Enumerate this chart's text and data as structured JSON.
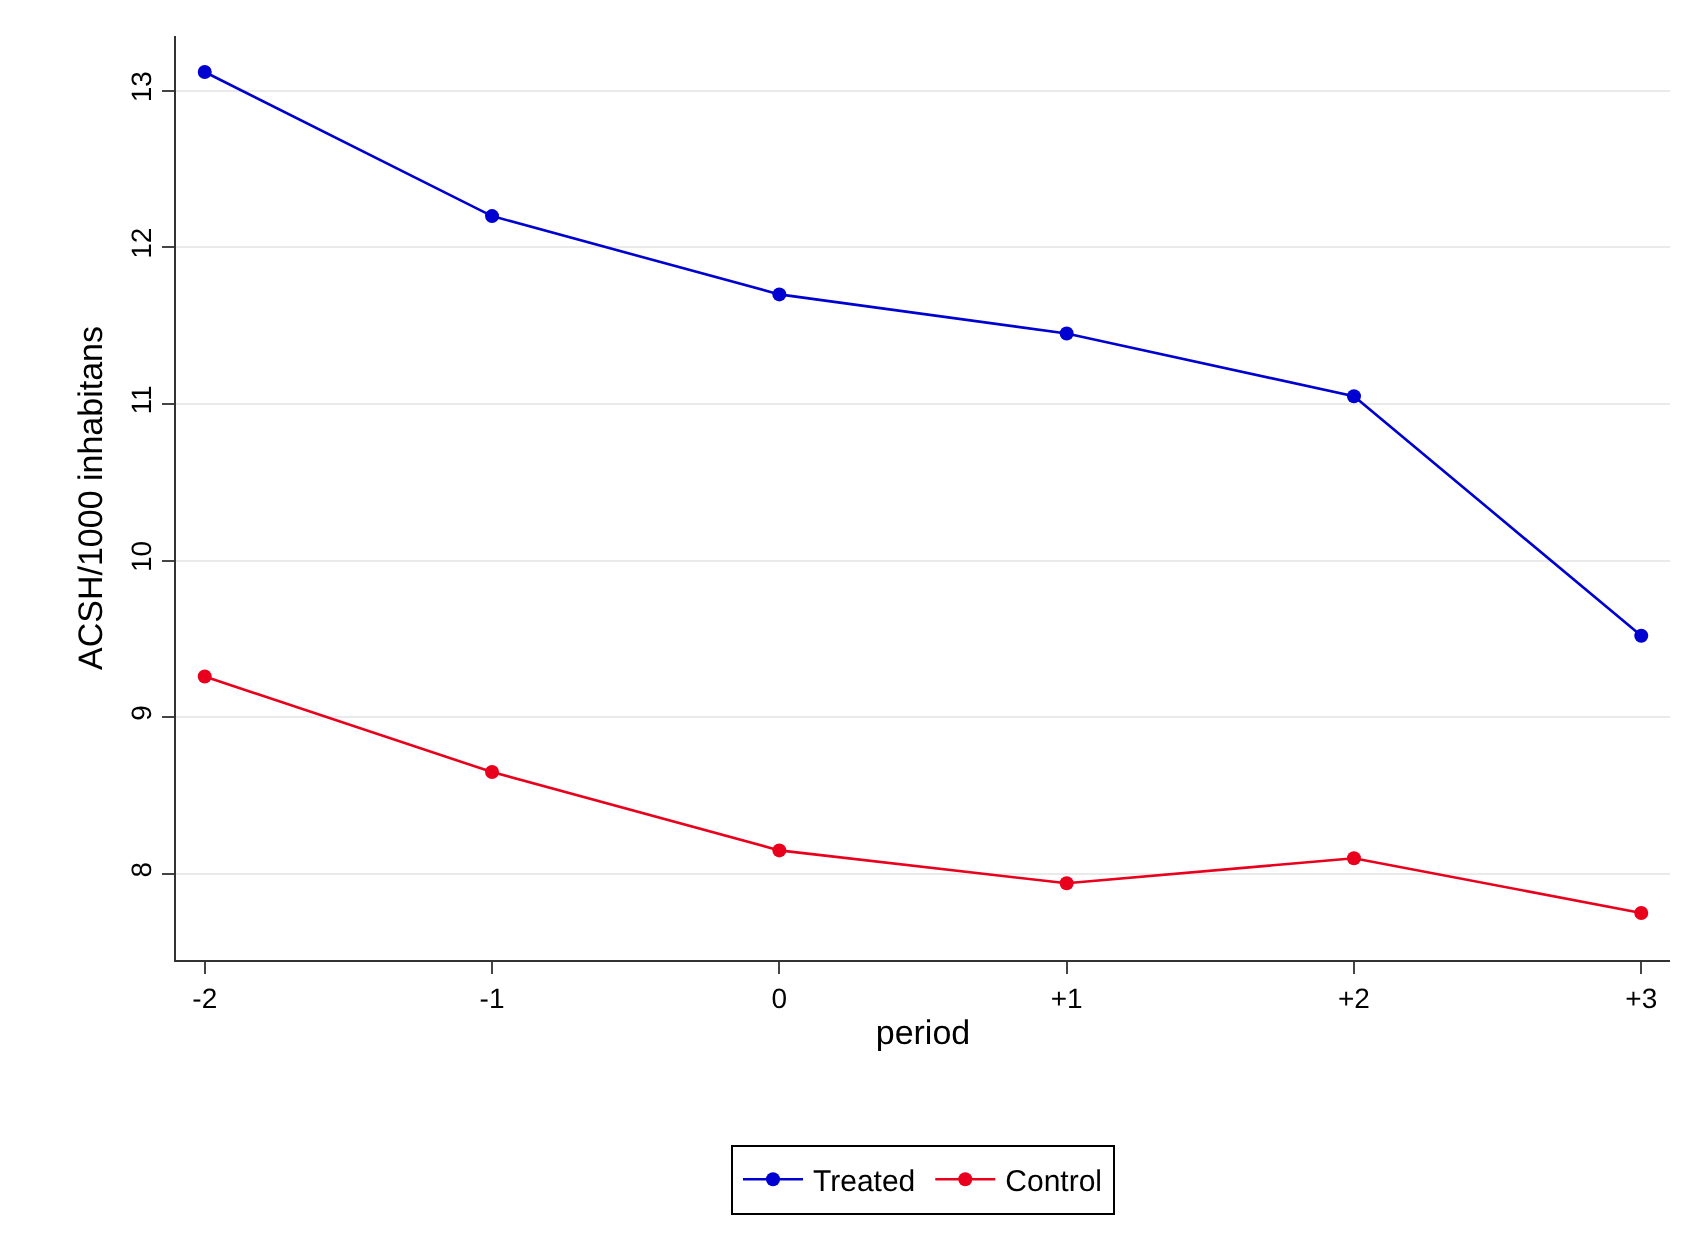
{
  "chart_data": {
    "type": "line",
    "xlabel": "period",
    "ylabel": "ACSH/1000 inhabitans",
    "categories": [
      "-2",
      "-1",
      "0",
      "+1",
      "+2",
      "+3"
    ],
    "series": [
      {
        "name": "Treated",
        "color": "#0000d0",
        "values": [
          13.12,
          12.2,
          11.7,
          11.45,
          11.05,
          9.52
        ]
      },
      {
        "name": "Control",
        "color": "#e8001c",
        "values": [
          9.26,
          8.65,
          8.15,
          7.94,
          8.1,
          7.75
        ]
      }
    ],
    "ylim": [
      7.45,
      13.35
    ],
    "yticks": [
      8,
      9,
      10,
      11,
      12,
      13
    ],
    "grid": "y",
    "legend": "bottom",
    "marker": "circle",
    "line_style": "solid"
  }
}
